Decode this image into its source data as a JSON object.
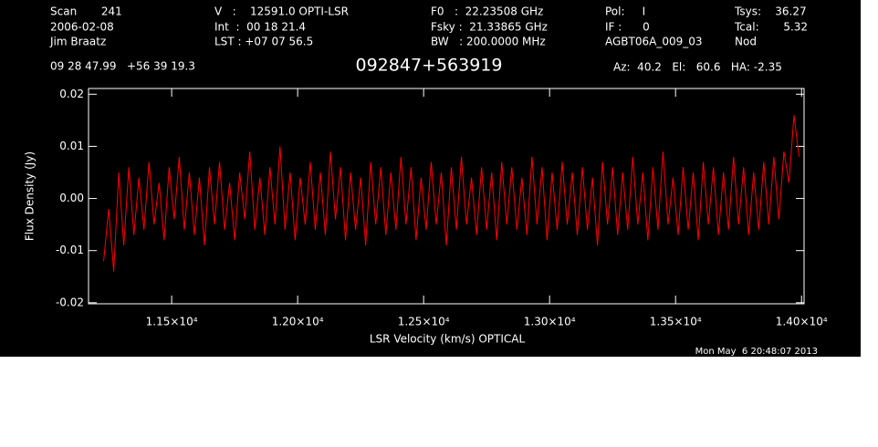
{
  "header": {
    "rows": [
      [
        "Scan       241",
        "V   :    12591.0 OPTI-LSR",
        "F0   :  22.23508 GHz",
        "Pol:     I",
        "Tsys:    36.27"
      ],
      [
        "2006-02-08",
        "Int  :  00 18 21.4",
        "Fsky :  21.33865 GHz",
        "IF :      0",
        "Tcal:       5.32"
      ],
      [
        "Jim Braatz",
        "LST : +07 07 56.5",
        "BW   : 200.0000 MHz",
        "AGBT06A_009_03",
        "Nod"
      ]
    ],
    "coords": "09 28 47.99   +56 39 19.3",
    "source": "092847+563919",
    "pointing": "Az:  40.2   El:   60.6   HA: -2.35",
    "timestamp": "Mon May  6 20:48:07 2013"
  },
  "chart_data": {
    "type": "line",
    "x_label": "LSR Velocity (km/s) OPTICAL",
    "y_label": "Flux Density (Jy)",
    "xlim": [
      11170,
      14010
    ],
    "ylim": [
      -0.0202,
      0.0211
    ],
    "xticks": [
      {
        "value": 11500,
        "label": "1.15×10⁴"
      },
      {
        "value": 12000,
        "label": "1.20×10⁴"
      },
      {
        "value": 12500,
        "label": "1.25×10⁴"
      },
      {
        "value": 13000,
        "label": "1.30×10⁴"
      },
      {
        "value": 13500,
        "label": "1.35×10⁴"
      },
      {
        "value": 14000,
        "label": "1.40×10⁴"
      }
    ],
    "yticks": [
      0.02,
      0.01,
      {
        "value": 0,
        "label": "0.00"
      },
      -0.01,
      -0.02
    ],
    "color": "#ff0000",
    "x": [
      11230,
      11250,
      11270,
      11290,
      11310,
      11330,
      11350,
      11370,
      11390,
      11410,
      11430,
      11450,
      11470,
      11490,
      11510,
      11530,
      11550,
      11570,
      11590,
      11610,
      11630,
      11650,
      11670,
      11690,
      11710,
      11730,
      11750,
      11770,
      11790,
      11810,
      11830,
      11850,
      11870,
      11890,
      11910,
      11930,
      11950,
      11970,
      11990,
      12010,
      12030,
      12050,
      12070,
      12090,
      12110,
      12130,
      12150,
      12170,
      12190,
      12210,
      12230,
      12250,
      12270,
      12290,
      12310,
      12330,
      12350,
      12370,
      12390,
      12410,
      12430,
      12450,
      12470,
      12490,
      12510,
      12530,
      12550,
      12570,
      12590,
      12610,
      12630,
      12650,
      12670,
      12690,
      12710,
      12730,
      12750,
      12770,
      12790,
      12810,
      12830,
      12850,
      12870,
      12890,
      12910,
      12930,
      12950,
      12970,
      12990,
      13010,
      13030,
      13050,
      13070,
      13090,
      13110,
      13130,
      13150,
      13170,
      13190,
      13210,
      13230,
      13250,
      13270,
      13290,
      13310,
      13330,
      13350,
      13370,
      13390,
      13410,
      13430,
      13450,
      13470,
      13490,
      13510,
      13530,
      13550,
      13570,
      13590,
      13610,
      13630,
      13650,
      13670,
      13690,
      13710,
      13730,
      13750,
      13770,
      13790,
      13810,
      13830,
      13850,
      13870,
      13890,
      13910,
      13930,
      13950,
      13970,
      13990
    ],
    "values": [
      -0.012,
      -0.002,
      -0.014,
      0.005,
      -0.009,
      0.006,
      -0.007,
      0.004,
      -0.006,
      0.007,
      -0.005,
      0.003,
      -0.008,
      0.006,
      -0.004,
      0.008,
      -0.006,
      0.005,
      -0.007,
      0.004,
      -0.009,
      0.006,
      -0.005,
      0.007,
      -0.006,
      0.003,
      -0.008,
      0.005,
      -0.004,
      0.009,
      -0.006,
      0.004,
      -0.007,
      0.006,
      -0.005,
      0.01,
      -0.006,
      0.005,
      -0.008,
      0.004,
      -0.005,
      0.007,
      -0.006,
      0.005,
      -0.007,
      0.009,
      -0.004,
      0.006,
      -0.008,
      0.005,
      -0.006,
      0.004,
      -0.009,
      0.007,
      -0.005,
      0.006,
      -0.007,
      0.005,
      -0.006,
      0.008,
      -0.005,
      0.006,
      -0.008,
      0.004,
      -0.006,
      0.007,
      -0.005,
      0.005,
      -0.009,
      0.006,
      -0.006,
      0.008,
      -0.005,
      0.004,
      -0.007,
      0.006,
      -0.006,
      0.005,
      -0.008,
      0.007,
      -0.005,
      0.006,
      -0.006,
      0.004,
      -0.007,
      0.008,
      -0.005,
      0.006,
      -0.008,
      0.005,
      -0.006,
      0.007,
      -0.005,
      0.005,
      -0.007,
      0.006,
      -0.006,
      0.004,
      -0.009,
      0.007,
      -0.005,
      0.006,
      -0.007,
      0.005,
      -0.006,
      0.008,
      -0.005,
      0.005,
      -0.008,
      0.006,
      -0.006,
      0.009,
      -0.005,
      0.004,
      -0.007,
      0.006,
      -0.006,
      0.005,
      -0.008,
      0.007,
      -0.005,
      0.006,
      -0.007,
      0.005,
      -0.006,
      0.008,
      -0.005,
      0.006,
      -0.007,
      0.005,
      -0.006,
      0.007,
      -0.005,
      0.008,
      -0.004,
      0.009,
      0.003,
      0.016,
      0.008
    ]
  }
}
